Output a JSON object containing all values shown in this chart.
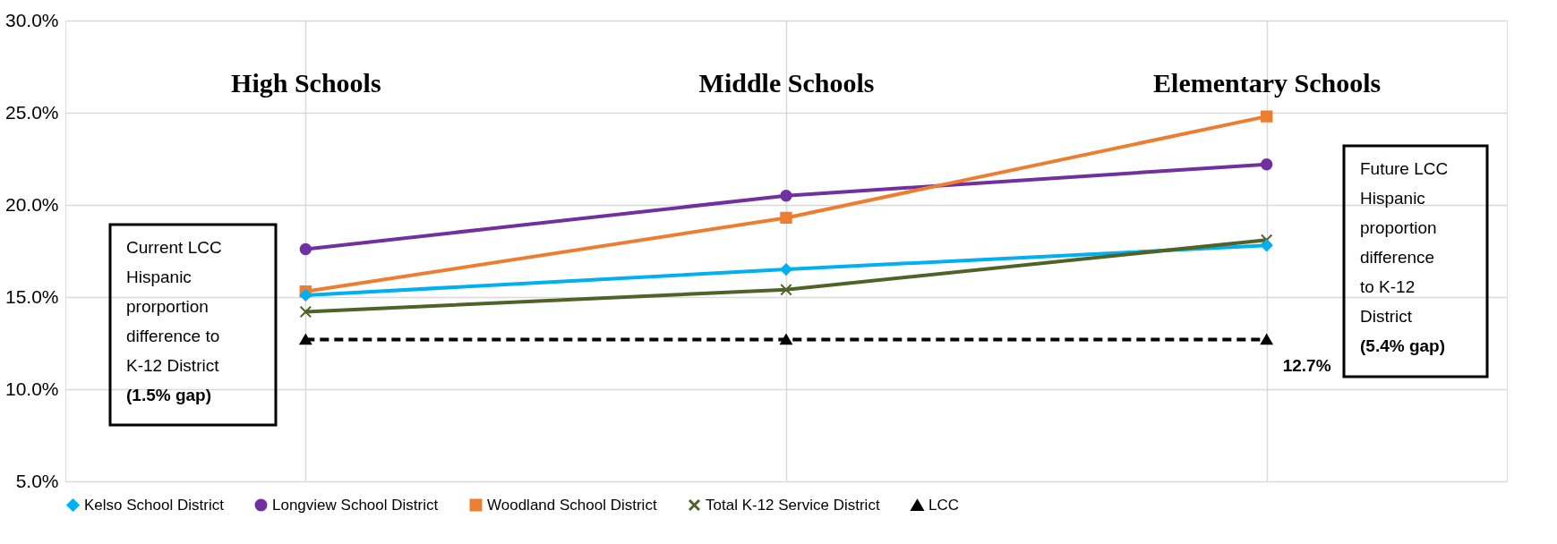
{
  "chart_data": {
    "type": "line",
    "categories": [
      "High Schools",
      "Middle Schools",
      "Elementary Schools"
    ],
    "series": [
      {
        "name": "Kelso School District",
        "color": "#00b0f0",
        "marker": "diamond",
        "values": [
          15.1,
          16.5,
          17.8
        ]
      },
      {
        "name": "Longview School District",
        "color": "#7030a0",
        "marker": "circle",
        "values": [
          17.6,
          20.5,
          22.2
        ]
      },
      {
        "name": "Woodland School District",
        "color": "#ed7d31",
        "marker": "square",
        "values": [
          15.3,
          19.3,
          24.8
        ]
      },
      {
        "name": "Total K-12 Service District",
        "color": "#4f6228",
        "marker": "cross",
        "values": [
          14.2,
          15.4,
          18.1
        ]
      },
      {
        "name": "LCC",
        "color": "#000000",
        "marker": "triangle",
        "line_style": "dashed",
        "values": [
          12.7,
          12.7,
          12.7
        ]
      }
    ],
    "ylim": [
      5,
      30
    ],
    "yticks": [
      {
        "value": 5,
        "label": "5.0%"
      },
      {
        "value": 10,
        "label": "10.0%"
      },
      {
        "value": 15,
        "label": "15.0%"
      },
      {
        "value": 20,
        "label": "20.0%"
      },
      {
        "value": 25,
        "label": "25.0%"
      },
      {
        "value": 30,
        "label": "30.0%"
      }
    ],
    "grid": true,
    "legend": "bottom",
    "annotations": [
      "Current LCC Hispanic prorportion difference to K-12 District",
      "(1.5% gap)",
      "Future LCC Hispanic proportion difference to K-12 District",
      "(5.4% gap)",
      {
        "text": "12.7%",
        "x": "Elementary Schools",
        "y": 12.7
      }
    ]
  }
}
